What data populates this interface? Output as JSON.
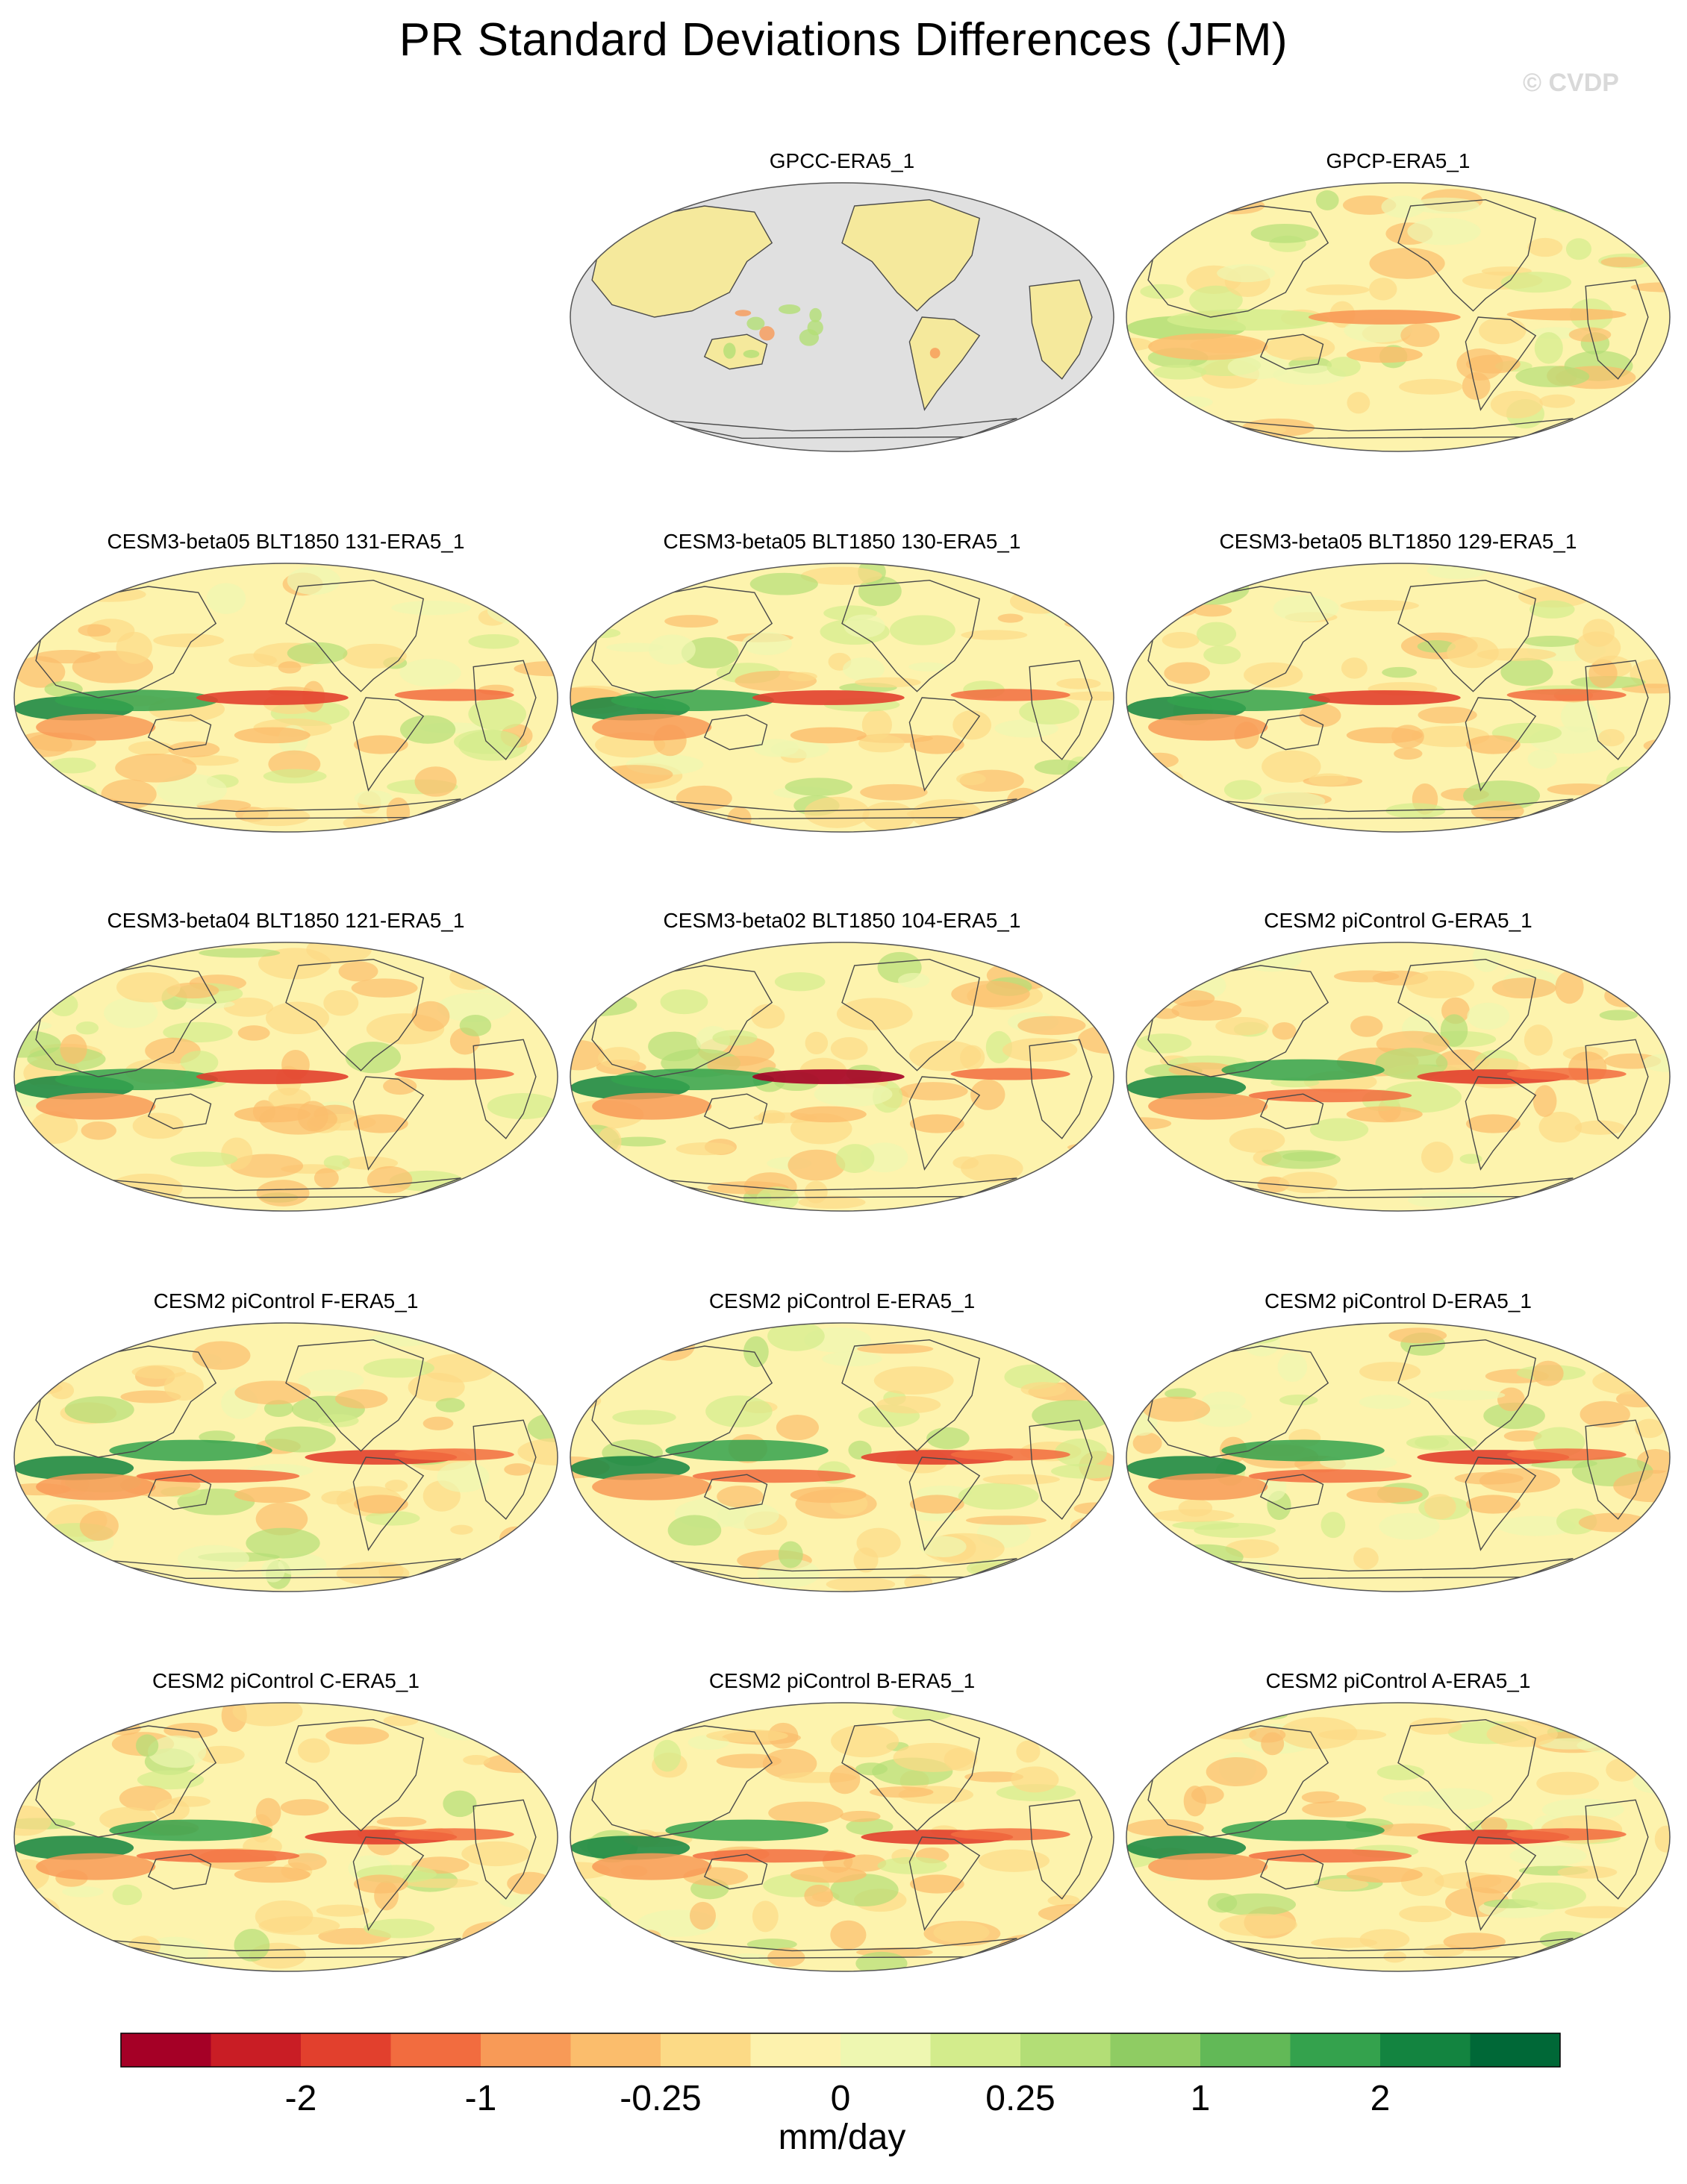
{
  "title": "PR Standard Deviations Differences (JFM)",
  "watermark": "© CVDP",
  "chart_data": {
    "type": "heatmap",
    "projection": "Robinson (Pacific-centered)",
    "variable": "precipitation standard deviation difference",
    "season": "JFM",
    "units": "mm/day",
    "panels": [
      {
        "name": "GPCC-ERA5_1",
        "land_only": true
      },
      {
        "name": "GPCP-ERA5_1",
        "land_only": false
      },
      {
        "name": "CESM3-beta05 BLT1850 131-ERA5_1",
        "land_only": false
      },
      {
        "name": "CESM3-beta05 BLT1850 130-ERA5_1",
        "land_only": false
      },
      {
        "name": "CESM3-beta05 BLT1850 129-ERA5_1",
        "land_only": false
      },
      {
        "name": "CESM3-beta04 BLT1850 121-ERA5_1",
        "land_only": false
      },
      {
        "name": "CESM3-beta02 BLT1850 104-ERA5_1",
        "land_only": false
      },
      {
        "name": "CESM2 piControl G-ERA5_1",
        "land_only": false
      },
      {
        "name": "CESM2 piControl F-ERA5_1",
        "land_only": false
      },
      {
        "name": "CESM2 piControl E-ERA5_1",
        "land_only": false
      },
      {
        "name": "CESM2 piControl D-ERA5_1",
        "land_only": false
      },
      {
        "name": "CESM2 piControl C-ERA5_1",
        "land_only": false
      },
      {
        "name": "CESM2 piControl B-ERA5_1",
        "land_only": false
      },
      {
        "name": "CESM2 piControl A-ERA5_1",
        "land_only": false
      }
    ],
    "colorbar": {
      "label": "mm/day",
      "tick_labels": [
        "-2",
        "-1",
        "-0.25",
        "0",
        "0.25",
        "1",
        "2"
      ],
      "tick_boundaries": [
        2,
        4,
        6,
        8,
        10,
        12,
        14
      ],
      "colors": [
        "#a50026",
        "#c91d25",
        "#e2402d",
        "#f26c3f",
        "#f89a57",
        "#fbbd6c",
        "#fcda86",
        "#fdf2ad",
        "#eef7b1",
        "#d3ec8c",
        "#b3de76",
        "#8fcc63",
        "#62b957",
        "#34a24d",
        "#138440",
        "#006837"
      ]
    },
    "fill_colors": {
      "land_mask": "#e0e0e0",
      "neutral": "#fdf3ad",
      "coast": "#4a4a4a"
    }
  }
}
